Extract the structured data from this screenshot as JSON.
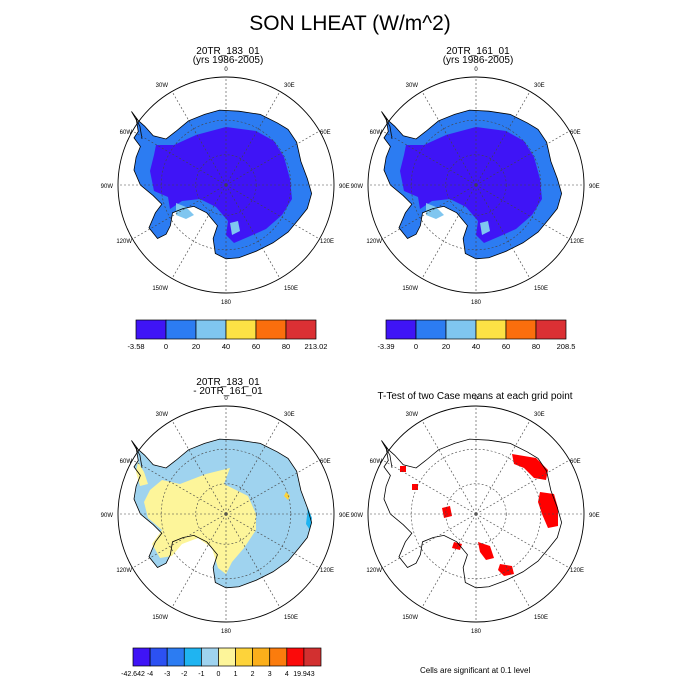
{
  "title": "SON LHEAT (W/m^2)",
  "panels": [
    {
      "id": "case1",
      "title_line1": "20TR_183_01",
      "title_line2": "(yrs 1986-2005)",
      "colorbar_labels": [
        "-3.58",
        "0",
        "20",
        "40",
        "60",
        "80",
        "213.02"
      ],
      "colors": [
        "#3f14f6",
        "#2c7cf2",
        "#7fc6f0",
        "#fde245",
        "#fb6e0d",
        "#db3034"
      ]
    },
    {
      "id": "case2",
      "title_line1": "20TR_161_01",
      "title_line2": "(yrs 1986-2005)",
      "colorbar_labels": [
        "-3.39",
        "0",
        "20",
        "40",
        "60",
        "80",
        "208.5"
      ],
      "colors": [
        "#3f14f6",
        "#2c7cf2",
        "#7fc6f0",
        "#fde245",
        "#fb6e0d",
        "#db3034"
      ]
    },
    {
      "id": "difference",
      "title_line1": "20TR_183_01",
      "title_line2": "- 20TR_161_01",
      "colorbar_labels": [
        "-42.642",
        "-4",
        "-3",
        "-2",
        "-1",
        "0",
        "1",
        "2",
        "3",
        "4",
        "19.943"
      ],
      "colors": [
        "#3f14f6",
        "#2c51f2",
        "#2c7cf2",
        "#1fb4f1",
        "#9fd3ef",
        "#fdf59a",
        "#fdd33a",
        "#fbaf1b",
        "#fb7c0d",
        "#fb0a0a",
        "#d23030"
      ]
    },
    {
      "id": "ttest",
      "title_line1": "T-Test of two Case means at each grid point",
      "note": "Cells are significant at 0.1 level",
      "sig_color": "#ff0000"
    }
  ],
  "map_labels": {
    "top": "0",
    "bottom": "180",
    "left": "90W",
    "right": "90E",
    "upper_left": [
      "30W",
      "60W"
    ],
    "upper_right": [
      "30E",
      "60E"
    ],
    "lower_left": [
      "120W",
      "150W"
    ],
    "lower_right": [
      "120E",
      "150E"
    ]
  }
}
